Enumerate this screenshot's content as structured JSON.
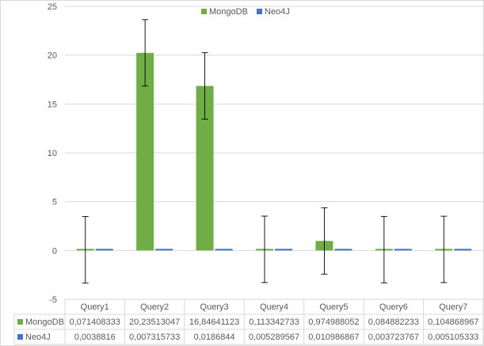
{
  "chart_data": {
    "type": "bar",
    "categories": [
      "Query1",
      "Query2",
      "Query3",
      "Query4",
      "Query5",
      "Query6",
      "Query7"
    ],
    "series": [
      {
        "name": "MongoDB",
        "color": "#70ad47",
        "values": [
          0.071408333,
          20.23513047,
          16.84641123,
          0.113342733,
          0.974988052,
          0.084882233,
          0.104868967
        ],
        "labels": [
          "0,071408333",
          "20,23513047",
          "16,84641123",
          "0,113342733",
          "0,974988052",
          "0,084882233",
          "0,104868967"
        ],
        "error_bars": [
          3.4,
          3.4,
          3.4,
          3.4,
          3.4,
          3.4,
          3.4
        ]
      },
      {
        "name": "Neo4J",
        "color": "#4472c4",
        "values": [
          0.0038816,
          0.007315733,
          0.0186844,
          0.005289567,
          0.010986867,
          0.003723767,
          0.005105333
        ],
        "labels": [
          "0,0038816",
          "0,007315733",
          "0,0186844",
          "0,005289567",
          "0,010986867",
          "0,003723767",
          "0,005105333"
        ]
      }
    ],
    "ylim": [
      -5,
      25
    ],
    "yticks": [
      "25",
      "20",
      "15",
      "10",
      "5",
      "0",
      "-5"
    ],
    "ytick_values": [
      25,
      20,
      15,
      10,
      5,
      0,
      -5
    ],
    "grid": true,
    "legend_position": "top-center",
    "data_table": true
  }
}
